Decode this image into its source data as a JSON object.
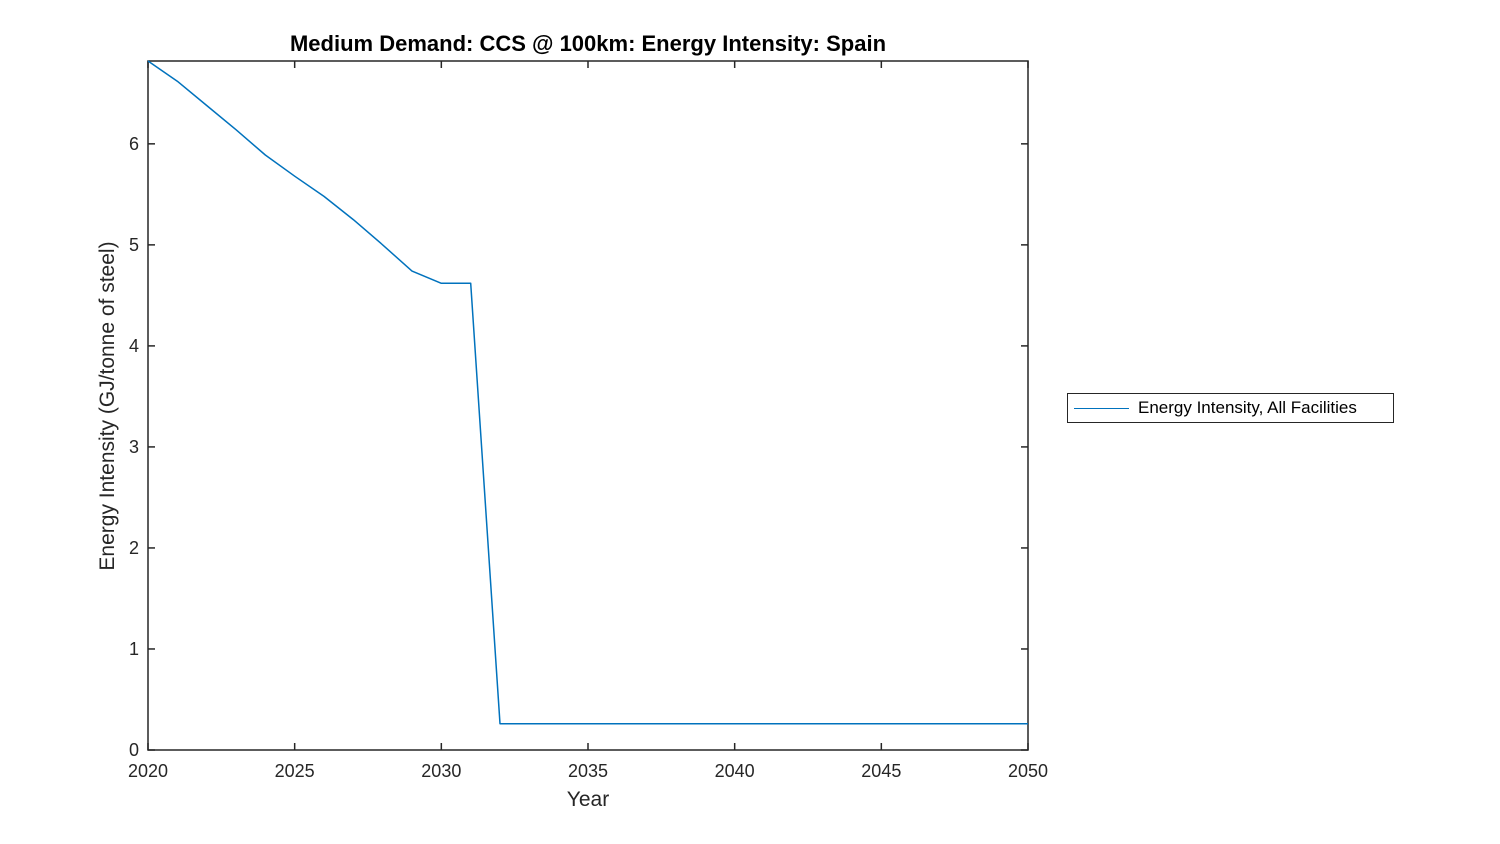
{
  "figure": {
    "background": "#ffffff"
  },
  "chart_data": {
    "type": "line",
    "title": "Medium Demand: CCS @ 100km: Energy Intensity: Spain",
    "xlabel": "Year",
    "ylabel": "Energy Intensity (GJ/tonne of steel)",
    "xlim": [
      2020,
      2050
    ],
    "ylim": [
      0,
      6.82
    ],
    "xticks": [
      2020,
      2025,
      2030,
      2035,
      2040,
      2045,
      2050
    ],
    "yticks": [
      0,
      1,
      2,
      3,
      4,
      5,
      6
    ],
    "grid": false,
    "box": true,
    "legend": {
      "position": "outside-right",
      "entries": [
        "Energy Intensity, All Facilities"
      ]
    },
    "series": [
      {
        "name": "Energy Intensity, All Facilities",
        "color": "#0072BD",
        "x": [
          2020,
          2021,
          2022,
          2023,
          2024,
          2025,
          2026,
          2027,
          2028,
          2029,
          2030,
          2031,
          2032,
          2033,
          2034,
          2035,
          2036,
          2037,
          2038,
          2039,
          2040,
          2041,
          2042,
          2043,
          2044,
          2045,
          2046,
          2047,
          2048,
          2049,
          2050
        ],
        "y": [
          6.82,
          6.62,
          6.38,
          6.14,
          5.89,
          5.68,
          5.48,
          5.25,
          5.0,
          4.74,
          4.62,
          4.62,
          0.26,
          0.26,
          0.26,
          0.26,
          0.26,
          0.26,
          0.26,
          0.26,
          0.26,
          0.26,
          0.26,
          0.26,
          0.26,
          0.26,
          0.26,
          0.26,
          0.26,
          0.26,
          0.26
        ]
      }
    ]
  },
  "colors": {
    "line": "#0072BD",
    "axis": "#262626",
    "tick_label": "#262626",
    "title": "#000000",
    "background": "#ffffff"
  }
}
